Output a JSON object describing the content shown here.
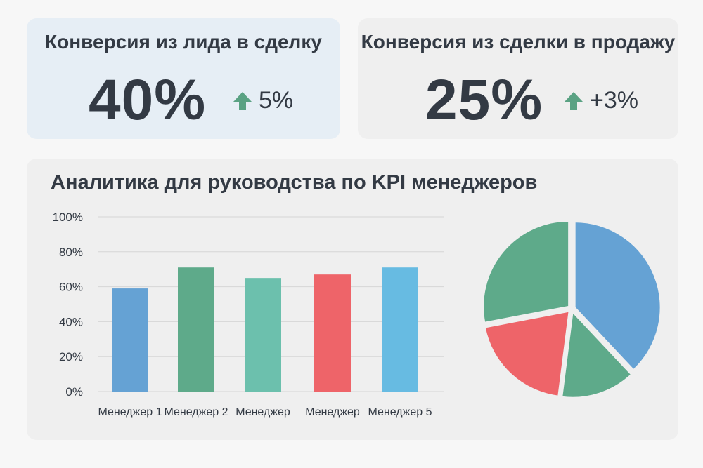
{
  "kpis": [
    {
      "title": "Конверсия из лида в сделку",
      "value": "40%",
      "delta": "5%",
      "delta_color": "#5aa283"
    },
    {
      "title": "Конверсия из сделки в продажу",
      "value": "25%",
      "delta": "+3%",
      "delta_color": "#5aa283"
    }
  ],
  "colors": {
    "blue": "#65a2d4",
    "green": "#5eaa8a",
    "teal": "#6cc0ad",
    "red": "#ee6469",
    "lightblue": "#67bbe2"
  },
  "chart_data": [
    {
      "type": "bar",
      "title": "Аналитика для руководства по KPI менеджеров",
      "categories": [
        "Менеджер 1",
        "Менеджер 2",
        "Менеджер",
        "Менеджер",
        "Менеджер 5"
      ],
      "values": [
        59,
        71,
        65,
        67,
        71
      ],
      "colors": [
        "#65a2d4",
        "#5eaa8a",
        "#6cc0ad",
        "#ee6469",
        "#67bbe2"
      ],
      "ylim": [
        0,
        100
      ],
      "yticks": [
        "0%",
        "20%",
        "40%",
        "60%",
        "80%",
        "100%"
      ],
      "grid": true
    },
    {
      "type": "pie",
      "values": [
        38,
        14,
        20,
        28
      ],
      "colors": [
        "#65a2d4",
        "#5eaa8a",
        "#ee6469",
        "#5eaa8a"
      ]
    }
  ]
}
